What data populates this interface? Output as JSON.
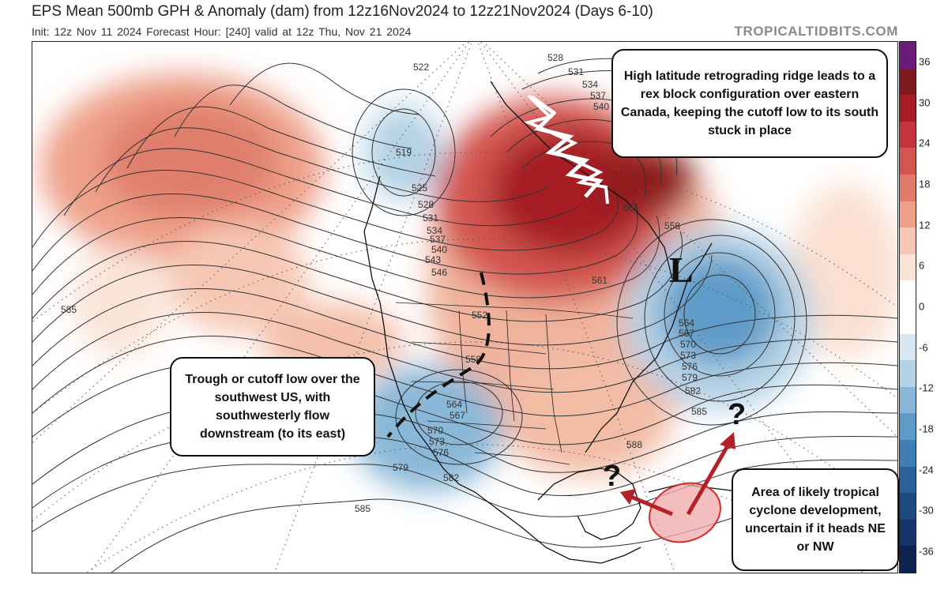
{
  "header": {
    "title": "EPS Mean 500mb GPH & Anomaly (dam) from 12z16Nov2024 to 12z21Nov2024 (Days 6-10)",
    "subtitle": "Init: 12z Nov 11 2024   Forecast Hour: [240]   valid at 12z Thu, Nov 21 2024",
    "brand": "TROPICALTIDBITS.COM"
  },
  "colorbar": {
    "labels": [
      "36",
      "30",
      "24",
      "18",
      "12",
      "6",
      "0",
      "-6",
      "-12",
      "-18",
      "-24",
      "-30",
      "-36"
    ],
    "colors": [
      "#6b1a7a",
      "#7d1a1e",
      "#a51d22",
      "#c4343a",
      "#d3554f",
      "#e27a6a",
      "#eea08a",
      "#f6c8b4",
      "#fbe4d8",
      "#ffffff",
      "#ffffff",
      "#d7e6f0",
      "#b4d2e6",
      "#8ab8d8",
      "#5f9bc8",
      "#3f7fb5",
      "#2a629b",
      "#1c4a7e",
      "#14346a",
      "#0e2250"
    ]
  },
  "map": {
    "contour_labels": [
      "522",
      "528",
      "531",
      "534",
      "537",
      "540",
      "519",
      "525",
      "528",
      "531",
      "534",
      "537",
      "540",
      "543",
      "546",
      "552",
      "558",
      "561",
      "561",
      "558",
      "564",
      "567",
      "570",
      "573",
      "576",
      "579",
      "582",
      "585",
      "588",
      "564",
      "567",
      "570",
      "573",
      "576",
      "579",
      "582",
      "585",
      "585"
    ],
    "low_label": "L",
    "question_marks": [
      "?",
      "?"
    ]
  },
  "callouts": {
    "ridge": "High latitude retrograding ridge leads to a rex block configuration over eastern Canada, keeping the cutoff low to its south stuck in place",
    "trough": "Trough or cutoff low over the southwest US, with southwesterly flow downstream (to its east)",
    "tropical": "Area of likely tropical cyclone development, uncertain if it heads NE or NW"
  }
}
